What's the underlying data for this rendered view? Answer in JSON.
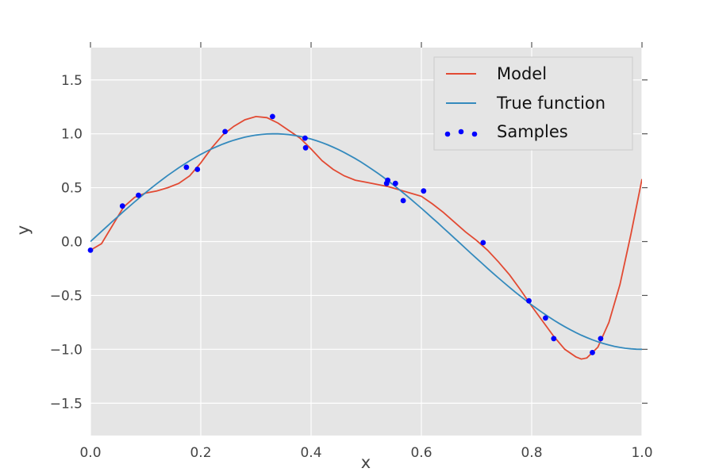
{
  "chart_data": {
    "type": "line",
    "title": "",
    "xlabel": "x",
    "ylabel": "y",
    "xlim": [
      0,
      1
    ],
    "ylim": [
      -1.8,
      1.8
    ],
    "xticks": [
      0.0,
      0.2,
      0.4,
      0.6,
      0.8,
      1.0
    ],
    "xtick_labels": [
      "0.0",
      "0.2",
      "0.4",
      "0.6",
      "0.8",
      "1.0"
    ],
    "yticks": [
      -1.5,
      -1.0,
      -0.5,
      0.0,
      0.5,
      1.0,
      1.5
    ],
    "ytick_labels": [
      "−1.5",
      "−1.0",
      "−0.5",
      "0.0",
      "0.5",
      "1.0",
      "1.5"
    ],
    "grid": true,
    "legend_position": "top-right",
    "series": [
      {
        "name": "Model",
        "kind": "line",
        "color": "#e24a33",
        "points": [
          [
            0.0,
            -0.08
          ],
          [
            0.02,
            -0.02
          ],
          [
            0.04,
            0.15
          ],
          [
            0.06,
            0.32
          ],
          [
            0.08,
            0.41
          ],
          [
            0.1,
            0.45
          ],
          [
            0.12,
            0.47
          ],
          [
            0.14,
            0.5
          ],
          [
            0.16,
            0.54
          ],
          [
            0.18,
            0.61
          ],
          [
            0.2,
            0.73
          ],
          [
            0.22,
            0.87
          ],
          [
            0.24,
            0.99
          ],
          [
            0.26,
            1.07
          ],
          [
            0.28,
            1.13
          ],
          [
            0.3,
            1.16
          ],
          [
            0.32,
            1.15
          ],
          [
            0.34,
            1.1
          ],
          [
            0.36,
            1.03
          ],
          [
            0.38,
            0.96
          ],
          [
            0.4,
            0.86
          ],
          [
            0.42,
            0.75
          ],
          [
            0.44,
            0.67
          ],
          [
            0.46,
            0.61
          ],
          [
            0.48,
            0.57
          ],
          [
            0.5,
            0.55
          ],
          [
            0.52,
            0.53
          ],
          [
            0.54,
            0.51
          ],
          [
            0.56,
            0.48
          ],
          [
            0.58,
            0.45
          ],
          [
            0.6,
            0.42
          ],
          [
            0.62,
            0.35
          ],
          [
            0.64,
            0.27
          ],
          [
            0.66,
            0.18
          ],
          [
            0.68,
            0.09
          ],
          [
            0.7,
            0.01
          ],
          [
            0.72,
            -0.08
          ],
          [
            0.74,
            -0.19
          ],
          [
            0.76,
            -0.31
          ],
          [
            0.78,
            -0.45
          ],
          [
            0.8,
            -0.6
          ],
          [
            0.82,
            -0.74
          ],
          [
            0.84,
            -0.88
          ],
          [
            0.86,
            -1.0
          ],
          [
            0.88,
            -1.07
          ],
          [
            0.89,
            -1.09
          ],
          [
            0.9,
            -1.08
          ],
          [
            0.92,
            -0.98
          ],
          [
            0.94,
            -0.75
          ],
          [
            0.96,
            -0.4
          ],
          [
            0.98,
            0.07
          ],
          [
            1.0,
            0.58
          ]
        ]
      },
      {
        "name": "True function",
        "kind": "function",
        "color": "#348abd",
        "function": "sin(1.5πx)",
        "x_samples": 101
      },
      {
        "name": "Samples",
        "kind": "scatter",
        "color": "#0000ff",
        "points": [
          [
            0.0,
            -0.08
          ],
          [
            0.058,
            0.33
          ],
          [
            0.087,
            0.43
          ],
          [
            0.174,
            0.69
          ],
          [
            0.194,
            0.67
          ],
          [
            0.244,
            1.02
          ],
          [
            0.33,
            1.16
          ],
          [
            0.389,
            0.96
          ],
          [
            0.39,
            0.87
          ],
          [
            0.537,
            0.54
          ],
          [
            0.539,
            0.57
          ],
          [
            0.553,
            0.54
          ],
          [
            0.567,
            0.38
          ],
          [
            0.604,
            0.47
          ],
          [
            0.712,
            -0.01
          ],
          [
            0.795,
            -0.55
          ],
          [
            0.825,
            -0.71
          ],
          [
            0.84,
            -0.9
          ],
          [
            0.91,
            -1.03
          ],
          [
            0.925,
            -0.9
          ]
        ]
      }
    ]
  }
}
